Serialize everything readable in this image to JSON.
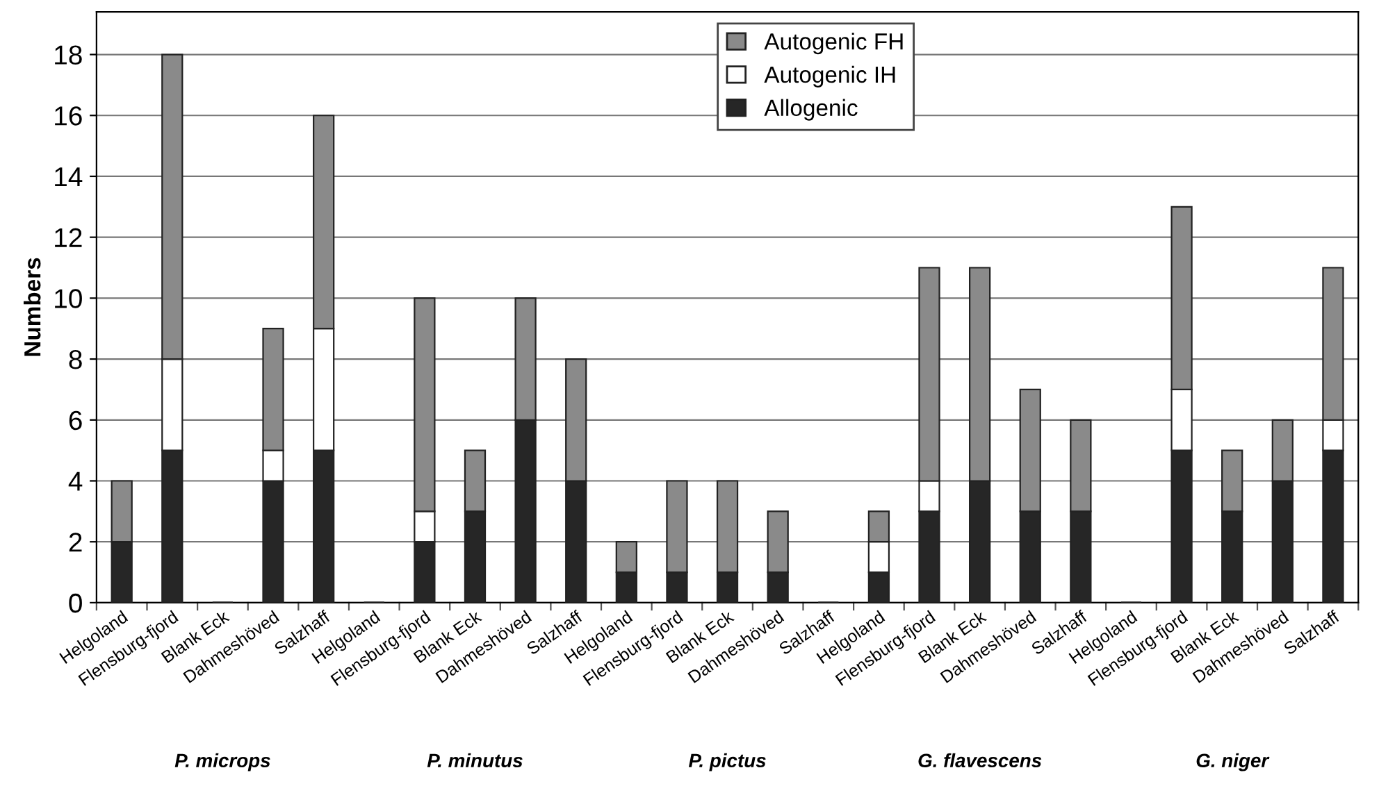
{
  "chart_data": {
    "type": "bar",
    "stacked": true,
    "ylabel": "Numbers",
    "categories": [
      "Helgoland",
      "Flensburg-fjord",
      "Blank Eck",
      "Dahmeshöved",
      "Salzhaff",
      "Helgoland",
      "Flensburg-fjord",
      "Blank Eck",
      "Dahmeshöved",
      "Salzhaff",
      "Helgoland",
      "Flensburg-fjord",
      "Blank Eck",
      "Dahmeshöved",
      "Salzhaff",
      "Helgoland",
      "Flensburg-fjord",
      "Blank Eck",
      "Dahmeshöved",
      "Salzhaff",
      "Helgoland",
      "Flensburg-fjord",
      "Blank Eck",
      "Dahmeshöved",
      "Salzhaff"
    ],
    "series": [
      {
        "name": "Allogenic",
        "color": "#262626",
        "values": [
          2,
          5,
          0,
          4,
          5,
          0,
          2,
          3,
          6,
          4,
          1,
          1,
          1,
          1,
          0,
          1,
          3,
          4,
          3,
          3,
          0,
          5,
          3,
          4,
          5
        ]
      },
      {
        "name": "Autogenic IH",
        "color": "#ffffff",
        "values": [
          0,
          3,
          0,
          1,
          4,
          0,
          1,
          0,
          0,
          0,
          0,
          0,
          0,
          0,
          0,
          1,
          1,
          0,
          0,
          0,
          0,
          2,
          0,
          0,
          1
        ]
      },
      {
        "name": "Autogenic FH",
        "color": "#8a8a8a",
        "values": [
          2,
          10,
          0,
          4,
          7,
          0,
          7,
          2,
          4,
          4,
          1,
          3,
          3,
          2,
          0,
          1,
          7,
          7,
          4,
          3,
          0,
          6,
          2,
          2,
          5
        ]
      }
    ],
    "ylim": [
      0,
      19.4
    ],
    "yticks": [
      0,
      2,
      4,
      6,
      8,
      10,
      12,
      14,
      16,
      18
    ],
    "grid": "y",
    "legend": "top",
    "annotations": [
      "P. microps",
      "P. minutus",
      "P. pictus",
      "G. flavescens",
      "G. niger"
    ]
  }
}
